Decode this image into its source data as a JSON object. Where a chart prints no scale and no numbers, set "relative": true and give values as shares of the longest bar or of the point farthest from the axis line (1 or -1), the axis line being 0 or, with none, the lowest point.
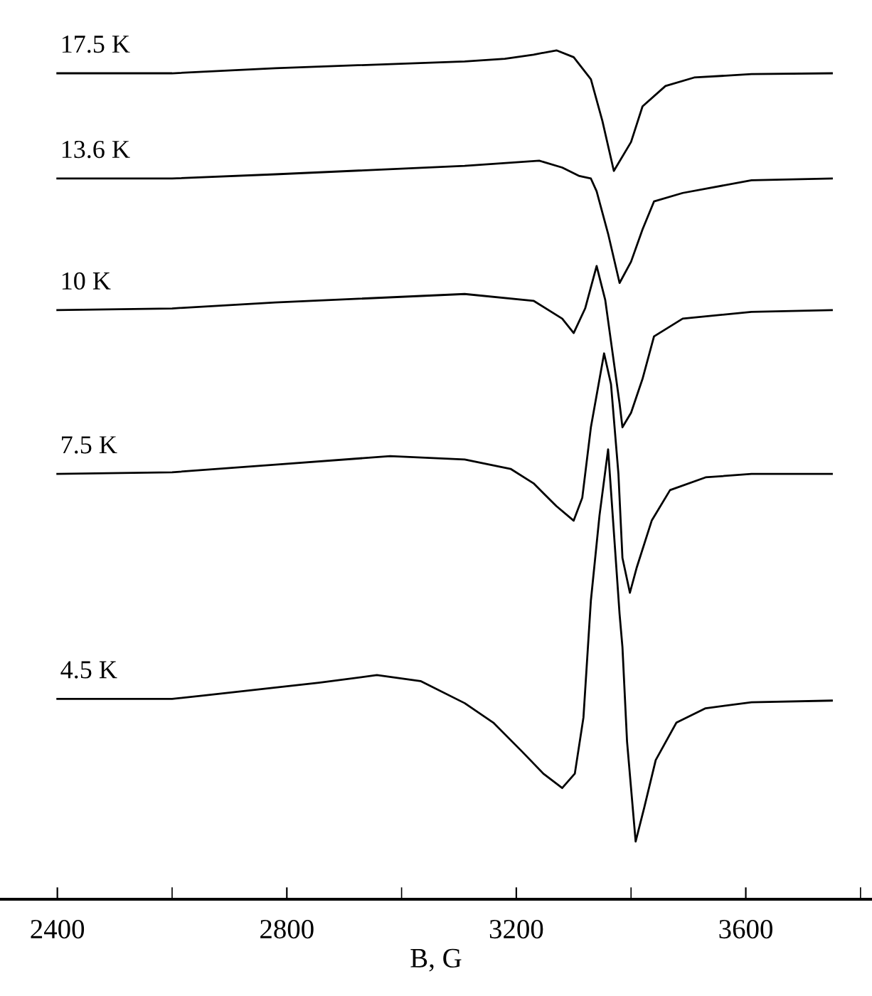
{
  "chart_data": {
    "type": "line",
    "relative": true,
    "xlabel": "B, G",
    "xlim": [
      2300,
      3820
    ],
    "xticks": [
      2400,
      {
        "value": 2600,
        "label": null
      },
      2800,
      {
        "value": 3000,
        "label": null
      },
      3200,
      {
        "value": 3400,
        "label": null
      },
      3600,
      {
        "value": 3800,
        "label": null
      }
    ],
    "grid": false,
    "legend": false,
    "marker": "none",
    "line_style": "solid",
    "series": [
      {
        "name": "17.5 K",
        "color": "#000000",
        "x": [
          2400,
          2600,
          2780,
          3110,
          3180,
          3230,
          3270,
          3300,
          3330,
          3350,
          3370,
          3400,
          3420,
          3460,
          3510,
          3610,
          3750
        ],
        "values": [
          0.973,
          0.973,
          0.979,
          0.987,
          0.99,
          0.995,
          1.0,
          0.992,
          0.966,
          0.917,
          0.858,
          0.892,
          0.934,
          0.958,
          0.968,
          0.972,
          0.973
        ]
      },
      {
        "name": "13.6 K",
        "color": "#000000",
        "x": [
          2400,
          2600,
          2780,
          3110,
          3240,
          3280,
          3310,
          3330,
          3340,
          3360,
          3380,
          3400,
          3420,
          3440,
          3490,
          3610,
          3750
        ],
        "values": [
          0.849,
          0.849,
          0.854,
          0.864,
          0.87,
          0.862,
          0.852,
          0.849,
          0.834,
          0.784,
          0.726,
          0.751,
          0.789,
          0.822,
          0.832,
          0.847,
          0.849
        ]
      },
      {
        "name": "10 K",
        "color": "#000000",
        "x": [
          2400,
          2600,
          2780,
          3110,
          3230,
          3280,
          3300,
          3320,
          3340,
          3355,
          3380,
          3385,
          3400,
          3420,
          3440,
          3490,
          3610,
          3750
        ],
        "values": [
          0.694,
          0.696,
          0.703,
          0.713,
          0.705,
          0.684,
          0.667,
          0.696,
          0.746,
          0.706,
          0.584,
          0.556,
          0.573,
          0.613,
          0.663,
          0.684,
          0.692,
          0.694
        ]
      },
      {
        "name": "7.5 K",
        "color": "#000000",
        "x": [
          2400,
          2600,
          2780,
          2980,
          3110,
          3190,
          3230,
          3270,
          3300,
          3315,
          3330,
          3353,
          3365,
          3378,
          3385,
          3398,
          3410,
          3436,
          3468,
          3530,
          3610,
          3750
        ],
        "values": [
          0.501,
          0.503,
          0.512,
          0.522,
          0.518,
          0.507,
          0.49,
          0.463,
          0.446,
          0.473,
          0.556,
          0.643,
          0.607,
          0.501,
          0.402,
          0.361,
          0.391,
          0.446,
          0.482,
          0.497,
          0.501,
          0.501
        ]
      },
      {
        "name": "4.5 K",
        "color": "#000000",
        "x": [
          2400,
          2600,
          2655,
          2856,
          2957,
          3033,
          3110,
          3160,
          3210,
          3247,
          3280,
          3302,
          3317,
          3330,
          3345,
          3360,
          3380,
          3385,
          3393,
          3408,
          3423,
          3443,
          3479,
          3530,
          3610,
          3750
        ],
        "values": [
          0.236,
          0.236,
          0.24,
          0.255,
          0.264,
          0.257,
          0.231,
          0.208,
          0.174,
          0.148,
          0.131,
          0.148,
          0.214,
          0.352,
          0.452,
          0.53,
          0.336,
          0.297,
          0.186,
          0.068,
          0.108,
          0.164,
          0.208,
          0.225,
          0.232,
          0.234
        ]
      }
    ]
  }
}
